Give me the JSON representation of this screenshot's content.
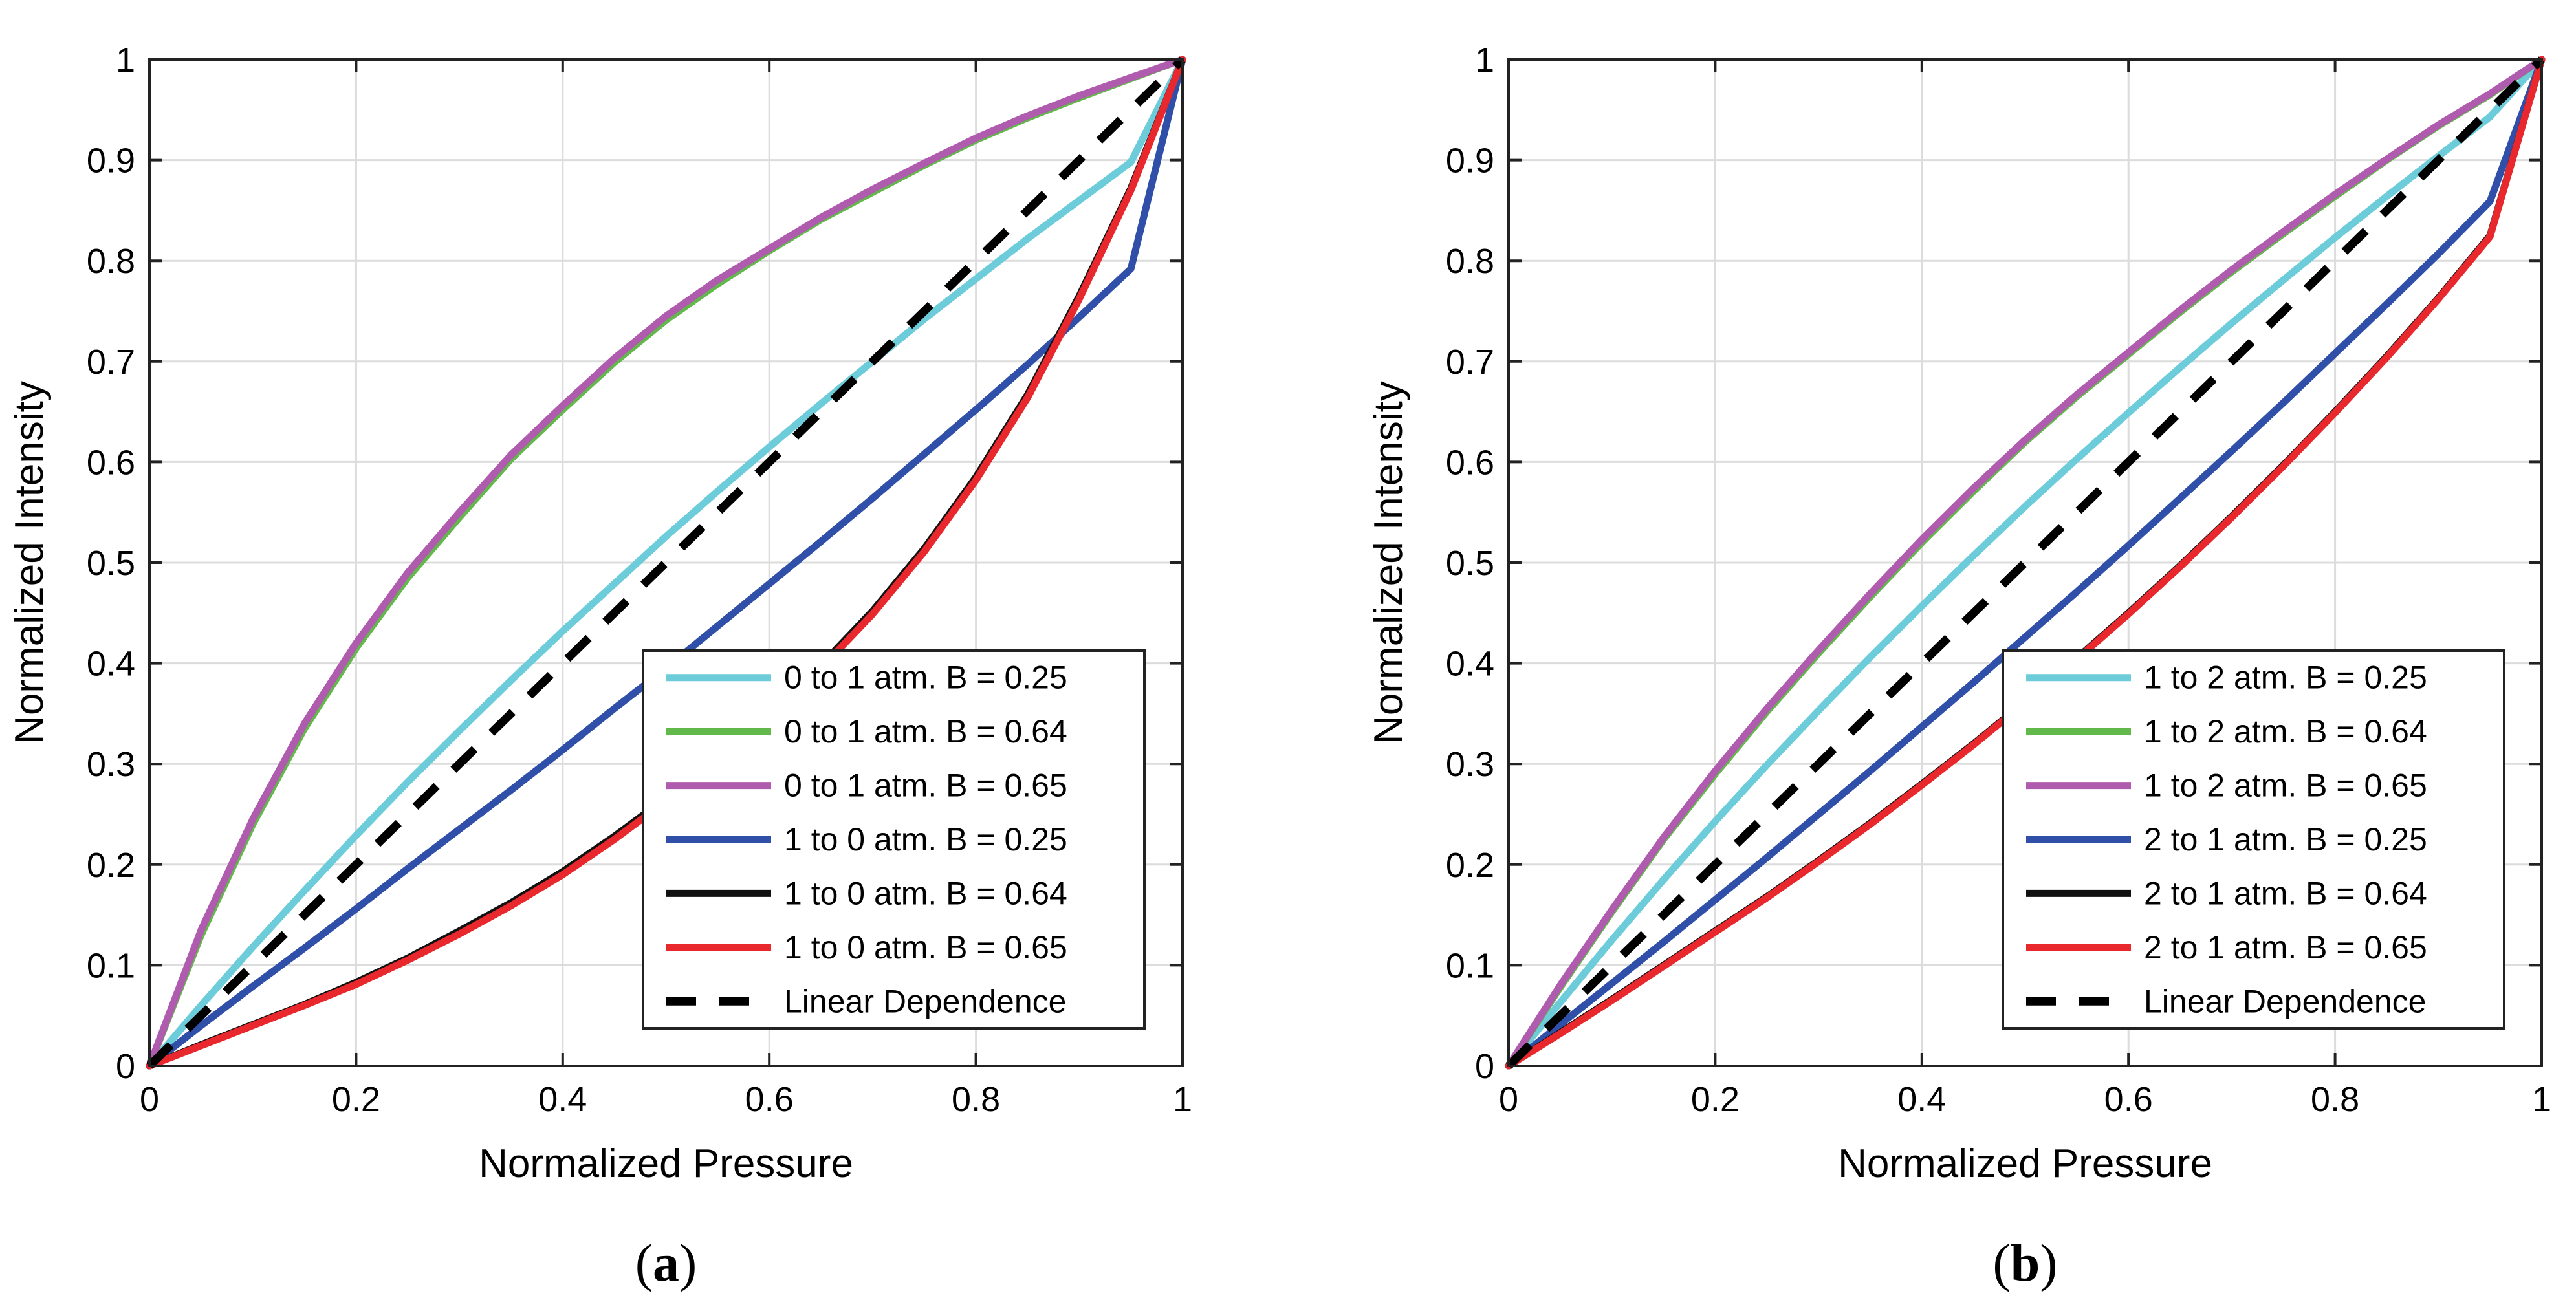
{
  "chart_data": [
    {
      "type": "line",
      "panel_label": "a",
      "xlabel": "Normalized Pressure",
      "ylabel": "Normalized Intensity",
      "xlim": [
        0,
        1
      ],
      "ylim": [
        0,
        1
      ],
      "grid": true,
      "legend_position": "bottom-right",
      "x_ticks": [
        "0",
        "0.2",
        "0.4",
        "0.6",
        "0.8",
        "1"
      ],
      "y_ticks": [
        "0",
        "0.1",
        "0.2",
        "0.3",
        "0.4",
        "0.5",
        "0.6",
        "0.7",
        "0.8",
        "0.9",
        "1"
      ],
      "x": [
        0,
        0.05,
        0.1,
        0.15,
        0.2,
        0.25,
        0.3,
        0.35,
        0.4,
        0.45,
        0.5,
        0.55,
        0.6,
        0.65,
        0.7,
        0.75,
        0.8,
        0.85,
        0.9,
        0.95,
        1
      ],
      "series": [
        {
          "name": "0 to 1 atm. B = 0.25",
          "color": "#6CCCDA",
          "dash": false,
          "values": [
            0,
            0.06,
            0.118,
            0.174,
            0.229,
            0.282,
            0.333,
            0.383,
            0.432,
            0.479,
            0.526,
            0.571,
            0.615,
            0.658,
            0.7,
            0.742,
            0.782,
            0.822,
            0.86,
            0.898,
            1.0
          ]
        },
        {
          "name": "0 to 1 atm. B = 0.64",
          "color": "#62B84A",
          "dash": false,
          "values": [
            0,
            0.13,
            0.24,
            0.335,
            0.415,
            0.485,
            0.545,
            0.603,
            0.652,
            0.699,
            0.741,
            0.777,
            0.81,
            0.841,
            0.868,
            0.895,
            0.92,
            0.942,
            0.962,
            0.981,
            1.0
          ]
        },
        {
          "name": "0 to 1 atm. B = 0.65",
          "color": "#AF5CAF",
          "dash": false,
          "values": [
            0,
            0.135,
            0.245,
            0.34,
            0.42,
            0.49,
            0.55,
            0.607,
            0.656,
            0.703,
            0.745,
            0.781,
            0.812,
            0.843,
            0.871,
            0.897,
            0.922,
            0.944,
            0.964,
            0.982,
            1.0
          ]
        },
        {
          "name": "1 to 0 atm. B = 0.25",
          "color": "#2F4FA8",
          "dash": false,
          "values": [
            0,
            0.04,
            0.079,
            0.117,
            0.156,
            0.196,
            0.235,
            0.274,
            0.314,
            0.355,
            0.395,
            0.437,
            0.479,
            0.521,
            0.564,
            0.608,
            0.652,
            0.697,
            0.744,
            0.792,
            1.0
          ]
        },
        {
          "name": "1 to 0 atm. B = 0.64",
          "color": "#111111",
          "dash": false,
          "values": [
            0,
            0.021,
            0.041,
            0.061,
            0.083,
            0.107,
            0.134,
            0.162,
            0.193,
            0.228,
            0.266,
            0.306,
            0.35,
            0.398,
            0.452,
            0.514,
            0.585,
            0.667,
            0.765,
            0.872,
            1.0
          ]
        },
        {
          "name": "1 to 0 atm. B = 0.65",
          "color": "#E8282C",
          "dash": false,
          "values": [
            0,
            0.02,
            0.04,
            0.06,
            0.081,
            0.105,
            0.131,
            0.159,
            0.19,
            0.225,
            0.263,
            0.303,
            0.347,
            0.395,
            0.449,
            0.511,
            0.582,
            0.664,
            0.762,
            0.87,
            1.0
          ]
        },
        {
          "name": "Linear Dependence",
          "color": "#000000",
          "dash": true,
          "values": [
            0,
            0.05,
            0.1,
            0.15,
            0.2,
            0.25,
            0.3,
            0.35,
            0.4,
            0.45,
            0.5,
            0.55,
            0.6,
            0.65,
            0.7,
            0.75,
            0.8,
            0.85,
            0.9,
            0.95,
            1.0
          ]
        }
      ]
    },
    {
      "type": "line",
      "panel_label": "b",
      "xlabel": "Normalized Pressure",
      "ylabel": "Normalized Intensity",
      "xlim": [
        0,
        1
      ],
      "ylim": [
        0,
        1
      ],
      "grid": true,
      "legend_position": "bottom-right",
      "x_ticks": [
        "0",
        "0.2",
        "0.4",
        "0.6",
        "0.8",
        "1"
      ],
      "y_ticks": [
        "0",
        "0.1",
        "0.2",
        "0.3",
        "0.4",
        "0.5",
        "0.6",
        "0.7",
        "0.8",
        "0.9",
        "1"
      ],
      "x": [
        0,
        0.05,
        0.1,
        0.15,
        0.2,
        0.25,
        0.3,
        0.35,
        0.4,
        0.45,
        0.5,
        0.55,
        0.6,
        0.65,
        0.7,
        0.75,
        0.8,
        0.85,
        0.9,
        0.95,
        1
      ],
      "series": [
        {
          "name": "1 to 2 atm. B = 0.25",
          "color": "#6CCCDA",
          "dash": false,
          "values": [
            0,
            0.063,
            0.125,
            0.185,
            0.243,
            0.299,
            0.353,
            0.406,
            0.457,
            0.507,
            0.556,
            0.603,
            0.649,
            0.694,
            0.738,
            0.781,
            0.823,
            0.864,
            0.904,
            0.943,
            1.0
          ]
        },
        {
          "name": "1 to 2 atm. B = 0.64",
          "color": "#62B84A",
          "dash": false,
          "values": [
            0,
            0.078,
            0.153,
            0.225,
            0.29,
            0.352,
            0.41,
            0.466,
            0.52,
            0.571,
            0.62,
            0.665,
            0.707,
            0.749,
            0.789,
            0.827,
            0.864,
            0.9,
            0.934,
            0.965,
            1.0
          ]
        },
        {
          "name": "1 to 2 atm. B = 0.65",
          "color": "#AF5CAF",
          "dash": false,
          "values": [
            0,
            0.08,
            0.155,
            0.227,
            0.293,
            0.355,
            0.413,
            0.469,
            0.523,
            0.574,
            0.622,
            0.667,
            0.709,
            0.751,
            0.791,
            0.829,
            0.866,
            0.901,
            0.935,
            0.966,
            1.0
          ]
        },
        {
          "name": "2 to 1 atm. B = 0.25",
          "color": "#2F4FA8",
          "dash": false,
          "values": [
            0,
            0.041,
            0.082,
            0.123,
            0.165,
            0.207,
            0.25,
            0.293,
            0.337,
            0.381,
            0.426,
            0.471,
            0.517,
            0.564,
            0.611,
            0.659,
            0.708,
            0.757,
            0.807,
            0.859,
            1.0
          ]
        },
        {
          "name": "2 to 1 atm. B = 0.64",
          "color": "#111111",
          "dash": false,
          "values": [
            0,
            0.033,
            0.066,
            0.1,
            0.134,
            0.168,
            0.204,
            0.241,
            0.28,
            0.32,
            0.362,
            0.405,
            0.45,
            0.497,
            0.546,
            0.597,
            0.65,
            0.705,
            0.763,
            0.825,
            1.0
          ]
        },
        {
          "name": "2 to 1 atm. B = 0.65",
          "color": "#E8282C",
          "dash": false,
          "values": [
            0,
            0.032,
            0.065,
            0.099,
            0.133,
            0.167,
            0.203,
            0.24,
            0.279,
            0.319,
            0.361,
            0.404,
            0.449,
            0.496,
            0.545,
            0.596,
            0.649,
            0.704,
            0.762,
            0.824,
            1.0
          ]
        },
        {
          "name": "Linear Dependence",
          "color": "#000000",
          "dash": true,
          "values": [
            0,
            0.05,
            0.1,
            0.15,
            0.2,
            0.25,
            0.3,
            0.35,
            0.4,
            0.45,
            0.5,
            0.55,
            0.6,
            0.65,
            0.7,
            0.75,
            0.8,
            0.85,
            0.9,
            0.95,
            1.0
          ]
        }
      ]
    }
  ]
}
